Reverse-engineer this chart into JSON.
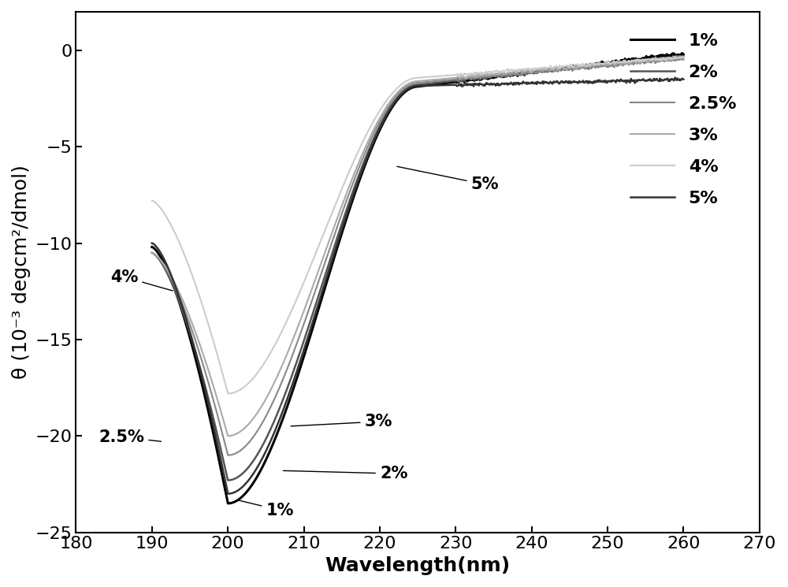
{
  "xlabel": "Wavelength(nm)",
  "ylabel": "θ (10⁻³ degcm²/dmol)",
  "xlim": [
    180,
    270
  ],
  "ylim": [
    -25,
    2
  ],
  "xticks": [
    180,
    190,
    200,
    210,
    220,
    230,
    240,
    250,
    260,
    270
  ],
  "yticks": [
    0,
    -5,
    -10,
    -15,
    -20,
    -25
  ],
  "series": [
    {
      "label": "1%",
      "color": "#000000",
      "lw": 2.2,
      "min_val": -23.5,
      "val_190": -10.2,
      "val_260": -0.15,
      "wl_min": 200
    },
    {
      "label": "2%",
      "color": "#555555",
      "lw": 1.8,
      "min_val": -22.3,
      "val_190": -10.5,
      "val_260": -0.3,
      "wl_min": 200
    },
    {
      "label": "2.5%",
      "color": "#888888",
      "lw": 1.5,
      "min_val": -21.0,
      "val_190": -10.5,
      "val_260": -0.45,
      "wl_min": 200
    },
    {
      "label": "3%",
      "color": "#aaaaaa",
      "lw": 1.5,
      "min_val": -20.0,
      "val_190": -10.5,
      "val_260": -0.35,
      "wl_min": 200
    },
    {
      "label": "4%",
      "color": "#cccccc",
      "lw": 1.5,
      "min_val": -17.8,
      "val_190": -7.8,
      "val_260": -0.35,
      "wl_min": 200
    },
    {
      "label": "5%",
      "color": "#333333",
      "lw": 1.8,
      "min_val": -23.0,
      "val_190": -10.0,
      "val_260": -1.5,
      "wl_min": 200
    }
  ],
  "legend_labels": [
    "1%",
    "2%",
    "2.5%",
    "3%",
    "4%",
    "5%"
  ],
  "legend_colors": [
    "#000000",
    "#555555",
    "#888888",
    "#aaaaaa",
    "#cccccc",
    "#333333"
  ],
  "legend_lws": [
    2.2,
    1.8,
    1.5,
    1.5,
    1.5,
    1.8
  ],
  "background_color": "#ffffff",
  "fontsize_ticks": 16,
  "fontsize_label": 18,
  "fontsize_legend": 16,
  "fontsize_annotation": 15
}
